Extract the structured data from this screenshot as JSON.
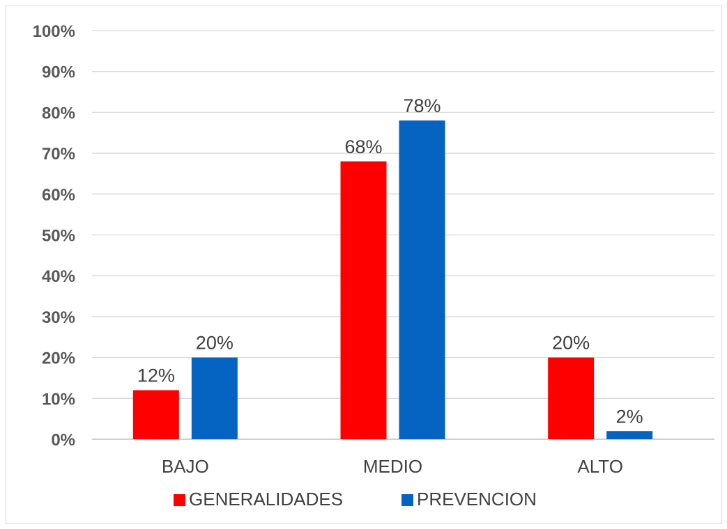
{
  "chart_data": {
    "type": "bar",
    "title": "",
    "xlabel": "",
    "ylabel": "",
    "categories": [
      "BAJO",
      "MEDIO",
      "ALTO"
    ],
    "series": [
      {
        "name": "GENERALIDADES",
        "color": "#ff0000",
        "values": [
          12,
          68,
          20
        ],
        "labels": [
          "12%",
          "68%",
          "20%"
        ]
      },
      {
        "name": "PREVENCION",
        "color": "#0563c1",
        "values": [
          20,
          78,
          2
        ],
        "labels": [
          "20%",
          "78%",
          "2%"
        ]
      }
    ],
    "ylim": [
      0,
      100
    ],
    "y_ticks": [
      0,
      10,
      20,
      30,
      40,
      50,
      60,
      70,
      80,
      90,
      100
    ],
    "y_tick_labels": [
      "0%",
      "10%",
      "20%",
      "30%",
      "40%",
      "50%",
      "60%",
      "70%",
      "80%",
      "90%",
      "100%"
    ],
    "grid": true,
    "legend_position": "bottom"
  }
}
